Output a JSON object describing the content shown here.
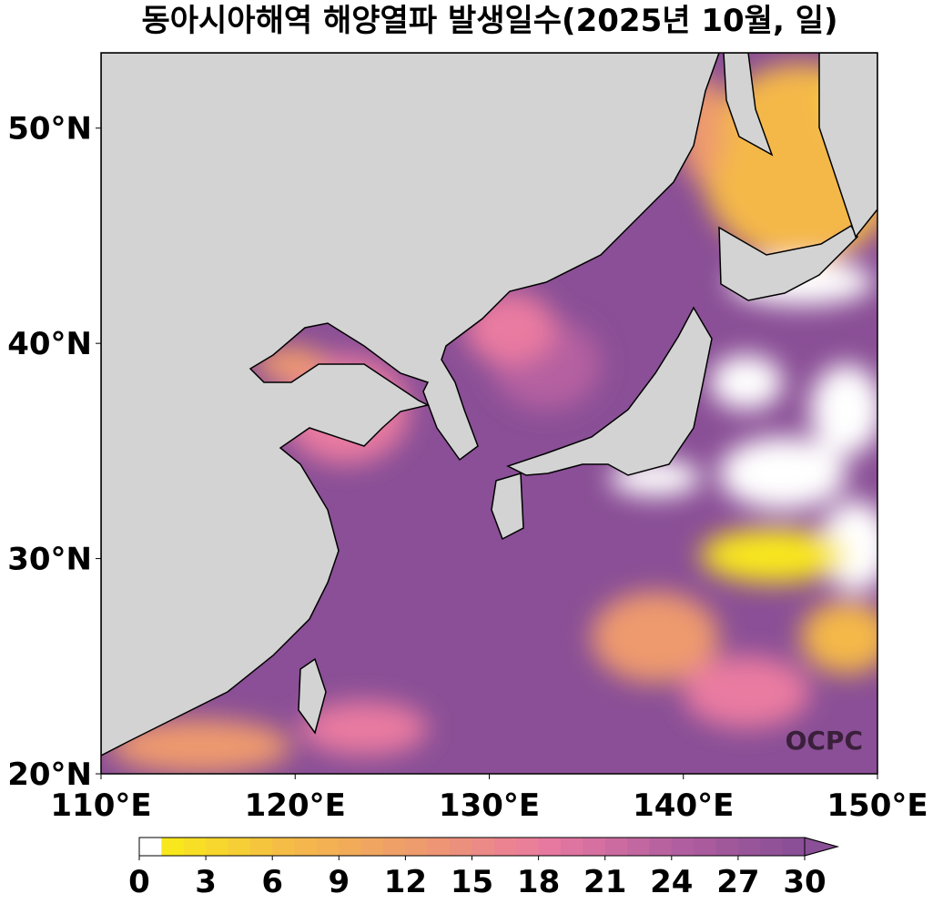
{
  "map": {
    "title": "동아시아해역 해양열파 발생일수(2025년 10월, 일)",
    "lonlim": [
      110,
      150
    ],
    "latlim": [
      20,
      53.5
    ],
    "lonticks": [
      {
        "value": 110,
        "label": "110°E"
      },
      {
        "value": 120,
        "label": "120°E"
      },
      {
        "value": 130,
        "label": "130°E"
      },
      {
        "value": 140,
        "label": "140°E"
      },
      {
        "value": 150,
        "label": "150°E"
      }
    ],
    "latticks": [
      {
        "value": 20,
        "label": "20°N"
      },
      {
        "value": 30,
        "label": "30°N"
      },
      {
        "value": 40,
        "label": "40°N"
      },
      {
        "value": 50,
        "label": "50°N"
      }
    ],
    "logo": "OCPC",
    "colorbar": {
      "range": [
        0,
        30
      ],
      "ticks": [
        0,
        3,
        6,
        9,
        12,
        15,
        18,
        21,
        24,
        27,
        30
      ],
      "colors": [
        "#ffffff",
        "#f9e71e",
        "#f4b84a",
        "#ee9a6e",
        "#e97aa0",
        "#b560a0",
        "#8a4f96"
      ]
    }
  }
}
